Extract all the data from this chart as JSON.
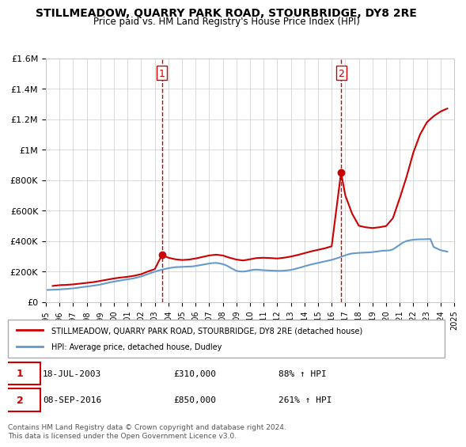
{
  "title": "STILLMEADOW, QUARRY PARK ROAD, STOURBRIDGE, DY8 2RE",
  "subtitle": "Price paid vs. HM Land Registry's House Price Index (HPI)",
  "ylabel": "",
  "ylim": [
    0,
    1600000
  ],
  "yticks": [
    0,
    200000,
    400000,
    600000,
    800000,
    1000000,
    1200000,
    1400000,
    1600000
  ],
  "ytick_labels": [
    "£0",
    "£200K",
    "£400K",
    "£600K",
    "£800K",
    "£1M",
    "£1.2M",
    "£1.4M",
    "£1.6M"
  ],
  "xmin_year": 1995,
  "xmax_year": 2025,
  "xtick_years": [
    1995,
    1996,
    1997,
    1998,
    1999,
    2000,
    2001,
    2002,
    2003,
    2004,
    2005,
    2006,
    2007,
    2008,
    2009,
    2010,
    2011,
    2012,
    2013,
    2014,
    2015,
    2016,
    2017,
    2018,
    2019,
    2020,
    2021,
    2022,
    2023,
    2024,
    2025
  ],
  "hpi_color": "#6699cc",
  "price_color": "#cc0000",
  "vline_color": "#cc0000",
  "dot_color": "#cc0000",
  "marker1_year": 2003.54,
  "marker1_price": 310000,
  "marker2_year": 2016.69,
  "marker2_price": 850000,
  "legend_label1": "STILLMEADOW, QUARRY PARK ROAD, STOURBRIDGE, DY8 2RE (detached house)",
  "legend_label2": "HPI: Average price, detached house, Dudley",
  "note1_num": "1",
  "note1_date": "18-JUL-2003",
  "note1_price": "£310,000",
  "note1_hpi": "88% ↑ HPI",
  "note2_num": "2",
  "note2_date": "08-SEP-2016",
  "note2_price": "£850,000",
  "note2_hpi": "261% ↑ HPI",
  "copyright": "Contains HM Land Registry data © Crown copyright and database right 2024.\nThis data is licensed under the Open Government Licence v3.0.",
  "hpi_data_x": [
    1995.0,
    1995.25,
    1995.5,
    1995.75,
    1996.0,
    1996.25,
    1996.5,
    1996.75,
    1997.0,
    1997.25,
    1997.5,
    1997.75,
    1998.0,
    1998.25,
    1998.5,
    1998.75,
    1999.0,
    1999.25,
    1999.5,
    1999.75,
    2000.0,
    2000.25,
    2000.5,
    2000.75,
    2001.0,
    2001.25,
    2001.5,
    2001.75,
    2002.0,
    2002.25,
    2002.5,
    2002.75,
    2003.0,
    2003.25,
    2003.5,
    2003.75,
    2004.0,
    2004.25,
    2004.5,
    2004.75,
    2005.0,
    2005.25,
    2005.5,
    2005.75,
    2006.0,
    2006.25,
    2006.5,
    2006.75,
    2007.0,
    2007.25,
    2007.5,
    2007.75,
    2008.0,
    2008.25,
    2008.5,
    2008.75,
    2009.0,
    2009.25,
    2009.5,
    2009.75,
    2010.0,
    2010.25,
    2010.5,
    2010.75,
    2011.0,
    2011.25,
    2011.5,
    2011.75,
    2012.0,
    2012.25,
    2012.5,
    2012.75,
    2013.0,
    2013.25,
    2013.5,
    2013.75,
    2014.0,
    2014.25,
    2014.5,
    2014.75,
    2015.0,
    2015.25,
    2015.5,
    2015.75,
    2016.0,
    2016.25,
    2016.5,
    2016.75,
    2017.0,
    2017.25,
    2017.5,
    2017.75,
    2018.0,
    2018.25,
    2018.5,
    2018.75,
    2019.0,
    2019.25,
    2019.5,
    2019.75,
    2020.0,
    2020.25,
    2020.5,
    2020.75,
    2021.0,
    2021.25,
    2021.5,
    2021.75,
    2022.0,
    2022.25,
    2022.5,
    2022.75,
    2023.0,
    2023.25,
    2023.5,
    2023.75,
    2024.0,
    2024.25,
    2024.5
  ],
  "hpi_data_y": [
    78000,
    79000,
    80000,
    81000,
    82000,
    84000,
    85000,
    87000,
    89000,
    92000,
    95000,
    98000,
    101000,
    104000,
    107000,
    110000,
    114000,
    119000,
    124000,
    129000,
    133000,
    137000,
    141000,
    145000,
    148000,
    152000,
    156000,
    161000,
    167000,
    175000,
    183000,
    191000,
    198000,
    205000,
    211000,
    216000,
    221000,
    225000,
    228000,
    229000,
    230000,
    231000,
    232000,
    233000,
    236000,
    240000,
    244000,
    248000,
    252000,
    255000,
    256000,
    253000,
    248000,
    240000,
    228000,
    215000,
    204000,
    200000,
    199000,
    202000,
    207000,
    211000,
    212000,
    210000,
    208000,
    207000,
    206000,
    205000,
    204000,
    204000,
    205000,
    207000,
    210000,
    215000,
    221000,
    227000,
    234000,
    240000,
    246000,
    251000,
    256000,
    261000,
    266000,
    271000,
    276000,
    283000,
    290000,
    298000,
    306000,
    313000,
    318000,
    320000,
    322000,
    323000,
    324000,
    325000,
    327000,
    330000,
    333000,
    336000,
    337000,
    338000,
    345000,
    360000,
    375000,
    390000,
    400000,
    405000,
    408000,
    410000,
    411000,
    411000,
    412000,
    413000,
    360000,
    350000,
    340000,
    335000,
    330000
  ],
  "price_data_x": [
    1995.5,
    1996.0,
    1996.5,
    1997.0,
    1997.5,
    1998.0,
    1998.5,
    1999.0,
    1999.5,
    2000.0,
    2000.5,
    2001.0,
    2001.5,
    2002.0,
    2002.5,
    2003.0,
    2003.54,
    2004.0,
    2004.5,
    2005.0,
    2005.5,
    2006.0,
    2006.5,
    2007.0,
    2007.5,
    2008.0,
    2008.5,
    2009.0,
    2009.5,
    2010.0,
    2010.5,
    2011.0,
    2011.5,
    2012.0,
    2012.5,
    2013.0,
    2013.5,
    2014.0,
    2014.5,
    2015.0,
    2015.5,
    2016.0,
    2016.69,
    2017.0,
    2017.5,
    2018.0,
    2018.5,
    2019.0,
    2019.5,
    2020.0,
    2020.5,
    2021.0,
    2021.5,
    2022.0,
    2022.5,
    2023.0,
    2023.5,
    2024.0,
    2024.5
  ],
  "price_data_y": [
    105000,
    110000,
    112000,
    115000,
    120000,
    125000,
    130000,
    138000,
    146000,
    154000,
    160000,
    165000,
    172000,
    182000,
    200000,
    215000,
    310000,
    290000,
    280000,
    275000,
    278000,
    285000,
    295000,
    305000,
    310000,
    305000,
    290000,
    278000,
    272000,
    280000,
    288000,
    290000,
    288000,
    285000,
    290000,
    298000,
    308000,
    320000,
    332000,
    342000,
    352000,
    365000,
    850000,
    700000,
    580000,
    500000,
    490000,
    485000,
    490000,
    498000,
    550000,
    680000,
    820000,
    980000,
    1100000,
    1180000,
    1220000,
    1250000,
    1270000
  ]
}
